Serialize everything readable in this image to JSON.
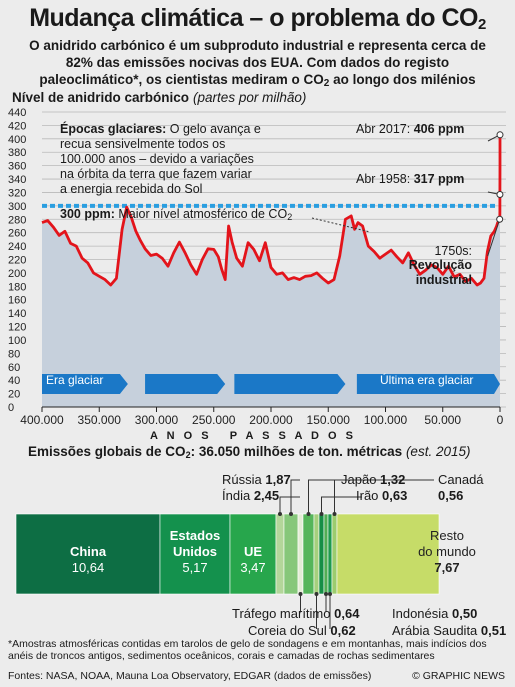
{
  "title": {
    "main": "Mudança climática – o problema do CO",
    "sub": "2"
  },
  "subtitle": {
    "line1": "O anidrido carbónico é um subproduto industrial e representa cerca de",
    "line2": "82% das emissões nocivas dos EUA. Com dados do registo",
    "line3a": "paleoclimático*, os cientistas mediram o CO",
    "line3b": "2",
    "line3c": " ao longo dos milénios"
  },
  "chart_title": {
    "label": "Nível de anidrido carbónico",
    "unit": "(partes por milhão)"
  },
  "annotations": {
    "glacial_bold": "Épocas glaciares:",
    "glacial_l1": " O gelo avança e",
    "glacial_l2": "recua sensivelmente todos os",
    "glacial_l3": "100.000 anos – devido a variações",
    "glacial_l4": "na órbita da terra que fazem variar",
    "glacial_l5": "a energia recebida do Sol",
    "ppm300_bold": "300 ppm:",
    "ppm300_text": " Maior nível atmosférico de CO",
    "ppm300_sub": "2",
    "abr2017_label": "Abr 2017:",
    "abr2017_value": "406 ppm",
    "abr1958_label": "Abr 1958:",
    "abr1958_value": "317 ppm",
    "s1750_label": "1750s:",
    "s1750_l1": "Revolução",
    "s1750_l2": "industrial",
    "era_glaciar": "Era glaciar",
    "ultima_era": "Última era glaciar",
    "axis_title": "A N O S   P A S S A D O S"
  },
  "chart_data": {
    "type": "line",
    "xlabel": "ANOS PASSADOS",
    "ylabel": "Nível de anidrido carbónico (partes por milhão)",
    "xlim": [
      400000,
      0
    ],
    "ylim": [
      0,
      440
    ],
    "x_ticks": [
      "400.000",
      "350.000",
      "300.000",
      "250.000",
      "200.000",
      "150.000",
      "100.000",
      "50.000",
      "0"
    ],
    "y_ticks": [
      0,
      20,
      40,
      60,
      80,
      100,
      120,
      140,
      160,
      180,
      200,
      220,
      240,
      260,
      280,
      300,
      320,
      340,
      360,
      380,
      400,
      420,
      440
    ],
    "reference_line": 300,
    "x": [
      400000,
      395000,
      390000,
      385000,
      380000,
      375000,
      370000,
      365000,
      360000,
      355000,
      350000,
      345000,
      340000,
      335000,
      330000,
      326000,
      322000,
      318000,
      314000,
      310000,
      305000,
      300000,
      295000,
      290000,
      285000,
      280000,
      275000,
      270000,
      265000,
      260000,
      255000,
      250000,
      246000,
      243000,
      240000,
      237000,
      234000,
      230000,
      225000,
      220000,
      215000,
      210000,
      205000,
      200000,
      195000,
      190000,
      185000,
      180000,
      175000,
      170000,
      165000,
      160000,
      155000,
      150000,
      145000,
      140000,
      135000,
      130000,
      127000,
      124000,
      120000,
      115000,
      110000,
      105000,
      100000,
      95000,
      90000,
      85000,
      80000,
      75000,
      70000,
      65000,
      60000,
      55000,
      50000,
      45000,
      40000,
      35000,
      30000,
      25000,
      20000,
      17000,
      14000,
      11000,
      8000,
      5000,
      3000,
      2000,
      1000,
      500,
      270,
      200,
      100,
      59,
      30,
      0
    ],
    "values": [
      275,
      278,
      268,
      256,
      262,
      244,
      240,
      222,
      215,
      200,
      195,
      190,
      182,
      192,
      265,
      298,
      283,
      262,
      248,
      236,
      226,
      228,
      222,
      210,
      230,
      246,
      230,
      212,
      198,
      220,
      236,
      235,
      224,
      205,
      190,
      270,
      246,
      222,
      210,
      245,
      235,
      218,
      245,
      208,
      198,
      200,
      190,
      193,
      190,
      195,
      196,
      200,
      192,
      185,
      190,
      225,
      280,
      285,
      265,
      275,
      270,
      240,
      232,
      222,
      228,
      234,
      224,
      215,
      230,
      212,
      198,
      204,
      212,
      208,
      198,
      210,
      194,
      198,
      187,
      192,
      182,
      185,
      192,
      232,
      255,
      262,
      270,
      275,
      278,
      277,
      278,
      280,
      292,
      317,
      360,
      406
    ]
  },
  "emissions": {
    "title_a": "Emissões globais de CO",
    "title_sub": "2",
    "title_b": ": 36.050 milhões de ton. métricas",
    "title_note": "(est. 2015)",
    "segments": [
      {
        "name": "China",
        "value": "10,64",
        "color": "#0d6e44"
      },
      {
        "name": "Estados Unidos",
        "name_l1": "Estados",
        "name_l2": "Unidos",
        "value": "5,17",
        "color": "#14914d"
      },
      {
        "name": "UE",
        "value": "3,47",
        "color": "#27a64c"
      },
      {
        "name": "Rússia",
        "value": "1,87",
        "color": "#86c77a"
      },
      {
        "name": "Índia",
        "value": "2,45",
        "color": "#b3d69a"
      },
      {
        "name": "Tráfego marítimo",
        "value": "0,64",
        "color": "#e4ecd6"
      },
      {
        "name": "Japão",
        "value": "1,32",
        "color": "#56b55a"
      },
      {
        "name": "Coreia do Sul",
        "value": "0,62",
        "color": "#a6d07d"
      },
      {
        "name": "Irão",
        "value": "0,63",
        "color": "#168e46"
      },
      {
        "name": "Indonésia",
        "value": "0,50",
        "color": "#52ad55"
      },
      {
        "name": "Arábia Saudita",
        "value": "0,51",
        "color": "#1e9a4e"
      },
      {
        "name": "Canadá",
        "value": "0,56",
        "color": "#9ccc6e"
      },
      {
        "name": "Resto do mundo",
        "name_l1": "Resto",
        "name_l2": "do mundo",
        "value": "7,67",
        "color": "#c6dc68"
      }
    ]
  },
  "footnote": {
    "line1": "*Amostras atmosféricas contidas em tarolos de gelo de sondagens e em montanhas, mais indícios dos",
    "line2": "anéis de troncos antigos, sedimentos oceânicos, corais e camadas de rochas sedimentares"
  },
  "sources": "Fontes: NASA, NOAA, Mauna Loa Observatory, EDGAR (dados de emissões)",
  "credit": "© GRAPHIC NEWS",
  "colors": {
    "line": "#e3141b",
    "reference": "#2a9ee0",
    "band": "#1b78c7",
    "fill": "#c6d0dc"
  }
}
